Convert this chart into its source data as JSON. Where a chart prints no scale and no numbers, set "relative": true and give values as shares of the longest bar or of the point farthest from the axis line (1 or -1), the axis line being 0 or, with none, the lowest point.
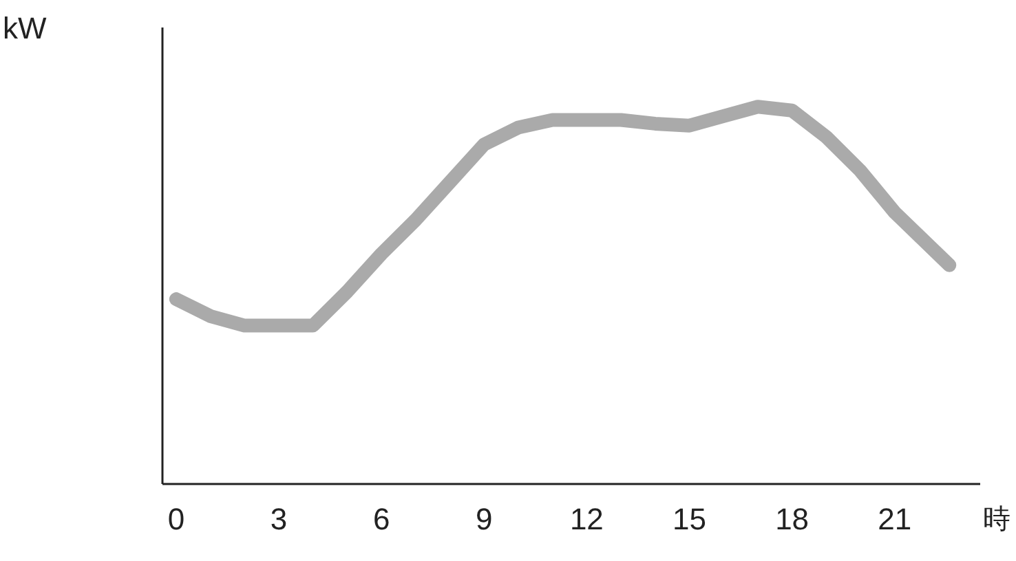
{
  "chart_data": {
    "type": "line",
    "ylabel": "kW",
    "xlabel": "時",
    "relative": true,
    "xlim": [
      -0.4,
      23.5
    ],
    "xticks": [
      0,
      3,
      6,
      9,
      12,
      15,
      18,
      21
    ],
    "series": [
      {
        "color": "#aaaaaa",
        "x": [
          0,
          1,
          2,
          3,
          4,
          5,
          6,
          7,
          8,
          9,
          10,
          11,
          12,
          13,
          14,
          15,
          16,
          17,
          18,
          19,
          20,
          21,
          22.6
        ],
        "values": [
          0.49,
          0.445,
          0.42,
          0.42,
          0.42,
          0.51,
          0.61,
          0.7,
          0.8,
          0.9,
          0.945,
          0.965,
          0.965,
          0.965,
          0.955,
          0.95,
          0.975,
          1,
          0.99,
          0.92,
          0.83,
          0.72,
          0.58
        ]
      }
    ],
    "grid": false,
    "marker": "none",
    "line_style": "solid"
  }
}
